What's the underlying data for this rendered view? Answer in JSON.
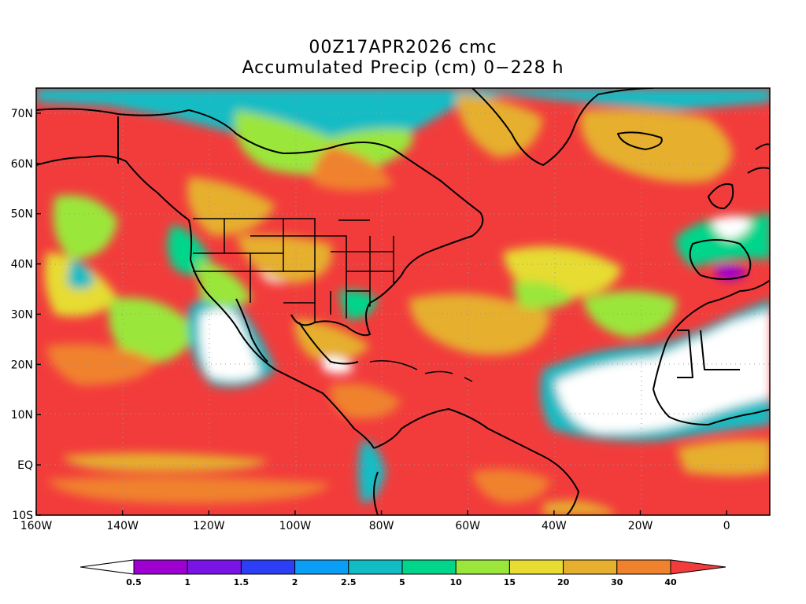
{
  "title": "00Z17APR2026 cmc",
  "subtitle": "Accumulated Precip (cm) 0−228 h",
  "map": {
    "x_ticks": [
      "160W",
      "140W",
      "120W",
      "100W",
      "80W",
      "60W",
      "40W",
      "20W",
      "0"
    ],
    "y_ticks": [
      "70N",
      "60N",
      "50N",
      "40N",
      "30N",
      "20N",
      "10N",
      "EQ",
      "10S"
    ],
    "x_values": [
      -160,
      -140,
      -120,
      -100,
      -80,
      -60,
      -40,
      -20,
      0
    ],
    "y_values": [
      70,
      60,
      50,
      40,
      30,
      20,
      10,
      0,
      -10
    ],
    "lon_range": [
      -160,
      10
    ],
    "lat_range": [
      -10,
      75
    ],
    "grid": true,
    "regions": {
      "background": "#f23c3c",
      "polar_cap": "#12bcc4",
      "east_pacific_dry": "#ffffff",
      "saharan_dry": "#ffffff",
      "atlantic_dry": "#ffffff"
    }
  },
  "colorbar": {
    "labels": [
      "0.5",
      "1",
      "1.5",
      "2",
      "2.5",
      "5",
      "10",
      "15",
      "20",
      "30",
      "40"
    ],
    "colors": [
      "#ffffff",
      "#9d00d0",
      "#7a14e6",
      "#2d3ff5",
      "#0a9ef7",
      "#12bcc4",
      "#00d58c",
      "#9be63a",
      "#e6dc32",
      "#e6af2d",
      "#f0822d",
      "#f23c3c"
    ]
  }
}
